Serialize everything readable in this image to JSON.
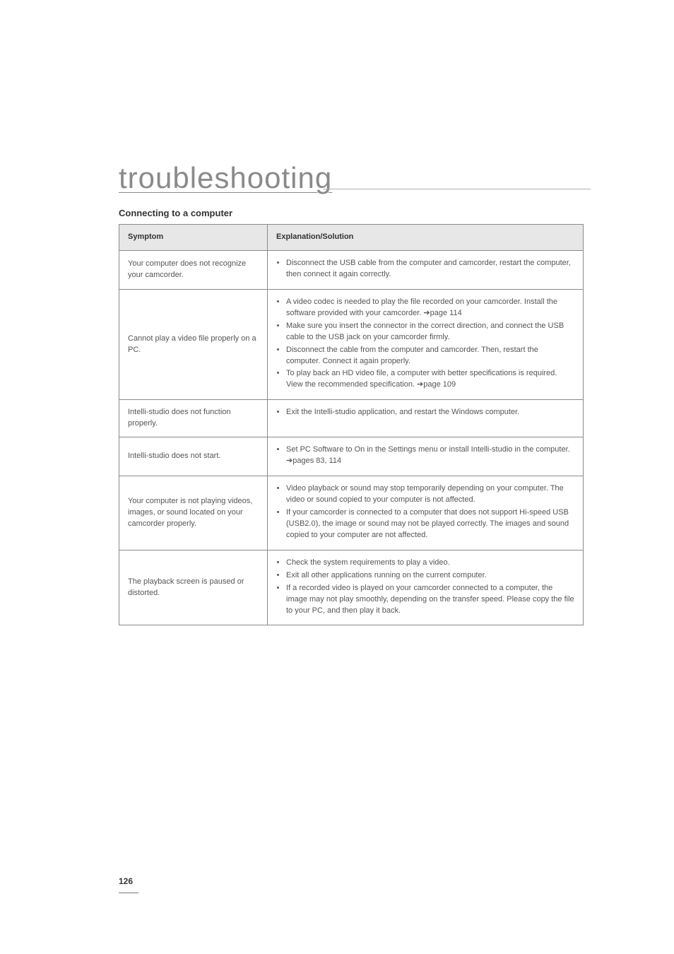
{
  "title": "troubleshooting",
  "subhead": "Connecting to a computer",
  "headers": {
    "symptom": "Symptom",
    "explanation": "Explanation/Solution"
  },
  "rows": [
    {
      "symptom": "Your computer does not recognize your camcorder.",
      "bullets": [
        "Disconnect the USB cable from the computer and camcorder, restart the computer, then connect it again correctly."
      ]
    },
    {
      "symptom": "Cannot play a video file properly on a PC.",
      "bullets": [
        "A video codec is needed to play the file recorded on your camcorder. Install the software provided with your camcorder. ➔page 114",
        "Make sure you insert the connector in the correct direction, and connect the USB cable to the USB jack on your camcorder firmly.",
        "Disconnect the cable from the computer and camcorder. Then, restart the computer. Connect it again properly.",
        "To play back an HD video file, a computer with better specifications is required.\nView the recommended specification. ➔page 109"
      ]
    },
    {
      "symptom": "Intelli-studio does not function properly.",
      "bullets": [
        "Exit the Intelli-studio application, and restart the Windows computer."
      ]
    },
    {
      "symptom": "Intelli-studio does not start.",
      "bullets": [
        "Set PC Software to On in the Settings menu or install Intelli-studio in the computer. ➔pages 83, 114"
      ]
    },
    {
      "symptom": "Your computer is not playing videos, images, or sound located on your camcorder properly.",
      "bullets": [
        "Video playback or sound may stop temporarily depending on your computer. The video or sound copied to your computer is not affected.",
        "If your camcorder is connected to a computer that does not support Hi-speed USB (USB2.0), the image or sound may not be played correctly. The images and sound copied to your computer are not affected."
      ]
    },
    {
      "symptom": "The playback screen is paused or distorted.",
      "bullets": [
        "Check the system requirements to play a video.",
        "Exit all other applications running on the current computer.",
        "If a recorded video is played on your camcorder connected to a computer, the image may not play smoothly, depending on the transfer speed. Please copy the file to your PC, and then play it back."
      ]
    }
  ],
  "page_number": "126"
}
